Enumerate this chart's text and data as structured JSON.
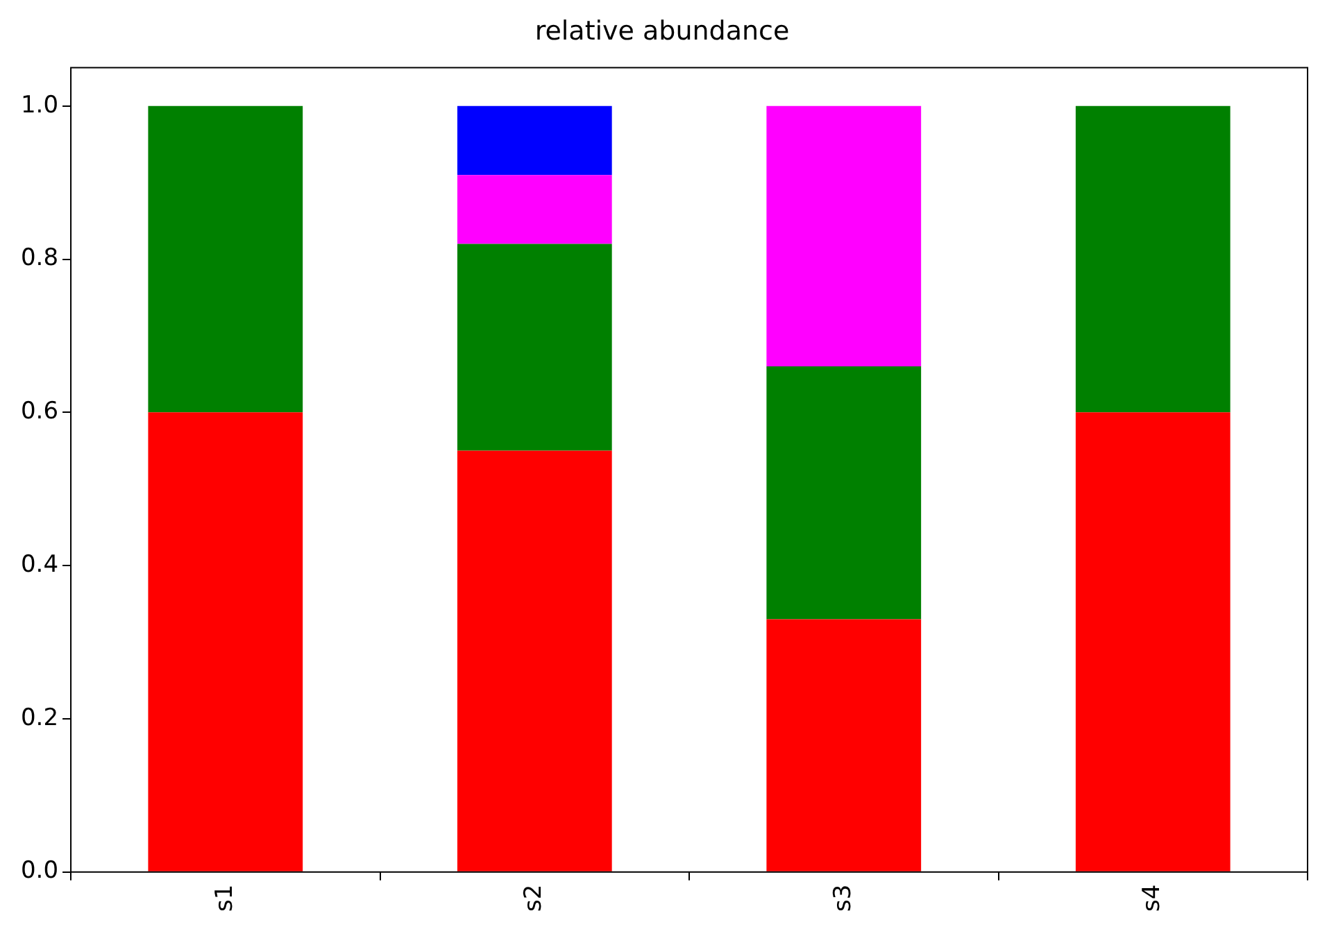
{
  "chart_data": {
    "type": "bar",
    "title": "relative abundance",
    "categories": [
      "s1",
      "s2",
      "s3",
      "s4"
    ],
    "stacked": true,
    "grid": false,
    "legend": false,
    "series": [
      {
        "color": "#ff0000",
        "values": [
          0.6,
          0.55,
          0.33,
          0.6
        ]
      },
      {
        "color": "#008000",
        "values": [
          0.4,
          0.27,
          0.33,
          0.4
        ]
      },
      {
        "color": "#ff00ff",
        "values": [
          0,
          0.09,
          0.34,
          0
        ]
      },
      {
        "color": "#0000ff",
        "values": [
          0,
          0.09,
          0,
          0
        ]
      }
    ],
    "ylim": [
      0,
      1.05
    ],
    "yticks": [
      {
        "value": 0,
        "label": "0.0"
      },
      {
        "value": 0.2,
        "label": "0.2"
      },
      {
        "value": 0.4,
        "label": "0.4"
      },
      {
        "value": 0.6,
        "label": "0.6"
      },
      {
        "value": 0.8,
        "label": "0.8"
      },
      {
        "value": 1,
        "label": "1.0"
      }
    ]
  }
}
